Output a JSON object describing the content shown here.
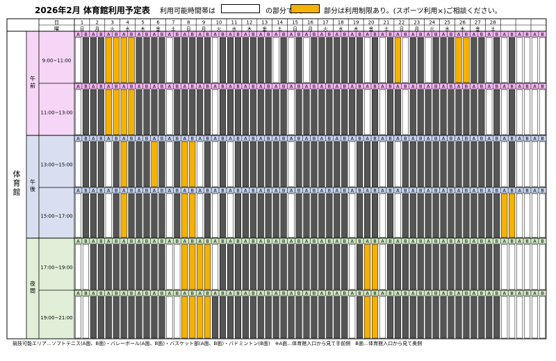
{
  "header": {
    "title": "2026年2月 体育館利用予定表",
    "legend_prefix": "利用可能時間帯は",
    "legend_middle": "の部分です。",
    "legend_suffix": "部分は利用制限あり。(スポーツ利用×)ご相談ください。"
  },
  "colors": {
    "available": "#ffffff",
    "booked": "#555555",
    "restricted": "#f5b200",
    "am_band": "#f6d6f6",
    "pm_band": "#d9dff0",
    "night_band": "#e1efd8",
    "am_ab": "#f2b6f0",
    "pm_ab": "#c6d2ee",
    "night_ab": "#cfe6c0"
  },
  "table": {
    "day_label": "日",
    "weekday_label": "曜",
    "facility": "体育館",
    "sessions": [
      {
        "name": "午前",
        "key": "am",
        "slots": [
          {
            "time": "9:00~11:00",
            "ab": "A"
          },
          {
            "time": "11:00~13:00",
            "ab": "A"
          }
        ]
      },
      {
        "name": "午後",
        "key": "pm",
        "slots": [
          {
            "time": "13:00~15:00",
            "ab": "A"
          },
          {
            "time": "15:00~17:00",
            "ab": "A"
          }
        ]
      },
      {
        "name": "夜間",
        "key": "night",
        "slots": [
          {
            "time": "17:00~19:00",
            "ab": "A"
          },
          {
            "time": "19:00~21:00",
            "ab": "A"
          }
        ]
      }
    ],
    "days": [
      {
        "d": "1",
        "w": "日"
      },
      {
        "d": "2",
        "w": "月"
      },
      {
        "d": "3",
        "w": "火"
      },
      {
        "d": "4",
        "w": "水"
      },
      {
        "d": "5",
        "w": "木"
      },
      {
        "d": "6",
        "w": "金"
      },
      {
        "d": "7",
        "w": "土"
      },
      {
        "d": "8",
        "w": "日"
      },
      {
        "d": "9",
        "w": "月"
      },
      {
        "d": "10",
        "w": "火"
      },
      {
        "d": "11",
        "w": "水"
      },
      {
        "d": "12",
        "w": "木"
      },
      {
        "d": "13",
        "w": "金"
      },
      {
        "d": "14",
        "w": "土"
      },
      {
        "d": "15",
        "w": "日"
      },
      {
        "d": "16",
        "w": "月"
      },
      {
        "d": "17",
        "w": "火"
      },
      {
        "d": "18",
        "w": "水"
      },
      {
        "d": "19",
        "w": "木"
      },
      {
        "d": "20",
        "w": "金"
      },
      {
        "d": "21",
        "w": "土"
      },
      {
        "d": "22",
        "w": "日"
      },
      {
        "d": "23",
        "w": "月"
      },
      {
        "d": "24",
        "w": "火"
      },
      {
        "d": "25",
        "w": "水"
      },
      {
        "d": "26",
        "w": "木"
      },
      {
        "d": "27",
        "w": "金"
      },
      {
        "d": "28",
        "w": "土"
      },
      {
        "d": "",
        "w": ""
      },
      {
        "d": "",
        "w": ""
      },
      {
        "d": "",
        "w": ""
      }
    ],
    "ab_labels": [
      "A",
      "B"
    ],
    "status_key": "W = available, G = booked, O = restricted; one character per A/B column",
    "rows": [
      "WGGGOOOOGGGGWGGGGGWGGGGGGGWGWGWGGGGGGGWGWGOWGGWGGGOOGGWGWGWWWWWW",
      "WGGGOOOOGGGGWGGGGGWGGGGGGGGGWGGGGGGGGGWGWGGWGGGGGGGGGGWGWGWWWWWW",
      "WGGGWGOGGGOGWGOOWGWGWGGGGGGGWGGGGGGGWGGGWGWGGGGGGGGGGGGGWGWWWWWW",
      "WGGGWGOGGGGGWGOOWGWGWGGGGGGGWGGGGGGGWGGGWGWGGGGGGGGGGGGGOOWWWWWW",
      "WWGGGGGGGGGGWWOOOOWGGGGGGGGGGGGGGGGGWGOOWGGGGGGGGGGGGGGGWWWWWWWW",
      "WWGGGGGGGGGGWWOOOOGGGGGGGGGGGGGGGGGGWGOOWGGGGGGGGGGGGGGGWWWWWWWW"
    ]
  },
  "footer": {
    "note": "競技可能エリア…ソフトテニス(A面、B面)・バレーボール(A面、B面)・バスケット部(A面、B面)・バドミントン(B面)　※A面…体育館入口から見て手前側　B面…体育館入口から見て奥側"
  }
}
